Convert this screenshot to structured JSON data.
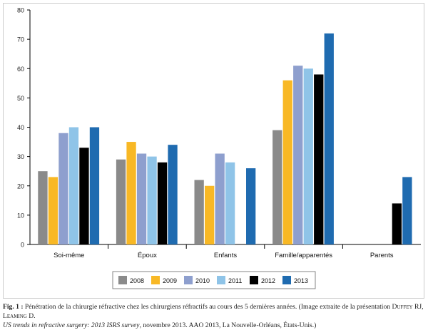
{
  "chart_data": {
    "type": "bar",
    "categories": [
      "Soi-même",
      "Époux",
      "Enfants",
      "Famille/apparentés",
      "Parents"
    ],
    "series": [
      {
        "name": "2008",
        "color": "#8a8a8a",
        "values": [
          25,
          29,
          22,
          39,
          null
        ]
      },
      {
        "name": "2009",
        "color": "#f8b825",
        "values": [
          23,
          35,
          20,
          56,
          null
        ]
      },
      {
        "name": "2010",
        "color": "#8e9fce",
        "values": [
          38,
          31,
          31,
          61,
          null
        ]
      },
      {
        "name": "2011",
        "color": "#8fc4e8",
        "values": [
          40,
          30,
          28,
          60,
          null
        ]
      },
      {
        "name": "2012",
        "color": "#000000",
        "values": [
          33,
          28,
          null,
          58,
          14
        ]
      },
      {
        "name": "2013",
        "color": "#1f6bb0",
        "values": [
          40,
          34,
          26,
          72,
          23
        ]
      }
    ],
    "ylim": [
      0,
      80
    ],
    "yticks": [
      0,
      10,
      20,
      30,
      40,
      50,
      60,
      70,
      80
    ],
    "grid": false,
    "legend": "bottom-center"
  },
  "caption": {
    "label": "Fig. 1 :",
    "text1": " Pénétration de la chirurgie réfractive chez les chirurgiens réfractifs au cours des 5 dernières années. (Image extraite de la présentation ",
    "authors": "Duffey RJ, Leaming D.",
    "title_italic": "US trends in refractive surgery: 2013 ISRS survey",
    "text2": ", novembre 2013. AAO 2013, La Nouvelle-Orléans, États-Unis.)"
  }
}
